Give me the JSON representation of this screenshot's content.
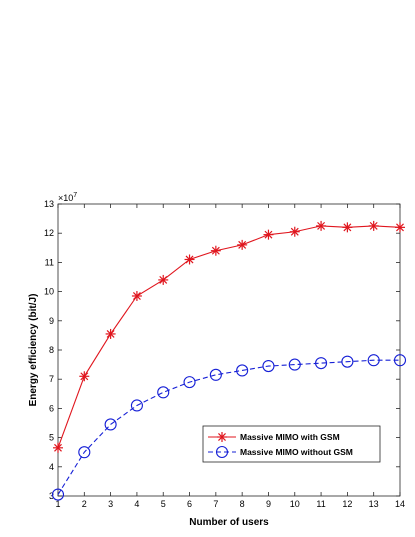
{
  "chart_data": {
    "type": "line",
    "xlabel": "Number of users",
    "ylabel": "Energy efficiency (bit/J)",
    "y_multiplier_label": "×10",
    "y_multiplier_exponent": "7",
    "xlim": [
      1,
      14
    ],
    "ylim": [
      3,
      13
    ],
    "x_ticks": [
      "1",
      "2",
      "3",
      "4",
      "5",
      "6",
      "7",
      "8",
      "9",
      "10",
      "11",
      "12",
      "13",
      "14"
    ],
    "y_ticks": [
      "3",
      "4",
      "5",
      "6",
      "7",
      "8",
      "9",
      "10",
      "11",
      "12",
      "13"
    ],
    "grid": false,
    "legend_position": "lower-right",
    "x": [
      1,
      2,
      3,
      4,
      5,
      6,
      7,
      8,
      9,
      10,
      11,
      12,
      13,
      14
    ],
    "series": [
      {
        "name": "Massive MIMO with GSM",
        "color": "#e0161e",
        "line_style": "solid",
        "marker": "asterisk",
        "values": [
          4.65,
          7.1,
          8.55,
          9.85,
          10.4,
          11.1,
          11.4,
          11.6,
          11.95,
          12.05,
          12.25,
          12.2,
          12.25,
          12.2
        ]
      },
      {
        "name": "Massive MIMO without GSM",
        "color": "#1620d6",
        "line_style": "dashed",
        "marker": "circle",
        "values": [
          3.05,
          4.5,
          5.45,
          6.1,
          6.55,
          6.9,
          7.15,
          7.3,
          7.45,
          7.5,
          7.55,
          7.6,
          7.65,
          7.65
        ]
      }
    ]
  }
}
